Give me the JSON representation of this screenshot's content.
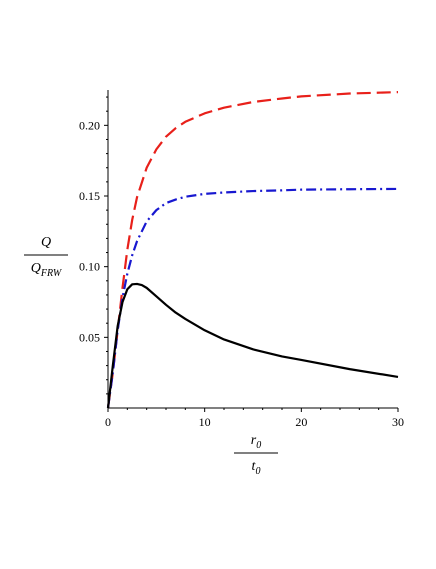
{
  "chart_data": {
    "type": "line",
    "title": "",
    "xlabel": {
      "numerator": {
        "base": "r",
        "sub": "0"
      },
      "denominator": {
        "base": "t",
        "sub": "0"
      }
    },
    "ylabel": {
      "numerator": {
        "base": "Q",
        "sub": ""
      },
      "denominator": {
        "base": "Q",
        "sub": "FRW"
      }
    },
    "xlim": [
      0,
      30
    ],
    "ylim": [
      0,
      0.225
    ],
    "xticks": [
      0,
      10,
      20,
      30
    ],
    "xtick_labels": [
      "0",
      "10",
      "20",
      "30"
    ],
    "yticks": [
      0.05,
      0.1,
      0.15,
      0.2
    ],
    "ytick_labels": [
      "0.05",
      "0.10",
      "0.15",
      "0.20"
    ],
    "grid": false,
    "legend": "none",
    "series": [
      {
        "style": "dashed",
        "color": "#e8201a",
        "x": [
          0,
          0.5,
          1,
          1.5,
          2,
          2.5,
          3,
          4,
          5,
          6,
          7,
          8,
          10,
          12,
          15,
          18,
          20,
          25,
          30
        ],
        "y": [
          0.0,
          0.025,
          0.055,
          0.085,
          0.112,
          0.133,
          0.149,
          0.17,
          0.183,
          0.192,
          0.198,
          0.2025,
          0.2085,
          0.2125,
          0.2165,
          0.219,
          0.2205,
          0.2225,
          0.2235
        ]
      },
      {
        "style": "dash-dot",
        "color": "#1818d0",
        "x": [
          0,
          0.5,
          1,
          1.5,
          2,
          2.5,
          3,
          4,
          5,
          6,
          7,
          8,
          10,
          12,
          15,
          18,
          20,
          25,
          30
        ],
        "y": [
          0.0,
          0.025,
          0.055,
          0.078,
          0.095,
          0.108,
          0.118,
          0.132,
          0.14,
          0.145,
          0.1475,
          0.1495,
          0.1515,
          0.1525,
          0.1535,
          0.154,
          0.1545,
          0.1548,
          0.155
        ]
      },
      {
        "style": "solid",
        "color": "#000000",
        "x": [
          0,
          0.5,
          1,
          1.5,
          2,
          2.5,
          3,
          3.5,
          4,
          5,
          6,
          7,
          8,
          10,
          12,
          15,
          18,
          20,
          25,
          30
        ],
        "y": [
          0.0,
          0.03,
          0.058,
          0.075,
          0.084,
          0.0875,
          0.0878,
          0.087,
          0.085,
          0.079,
          0.073,
          0.0675,
          0.063,
          0.055,
          0.0485,
          0.0415,
          0.0365,
          0.034,
          0.0275,
          0.022
        ]
      }
    ]
  }
}
